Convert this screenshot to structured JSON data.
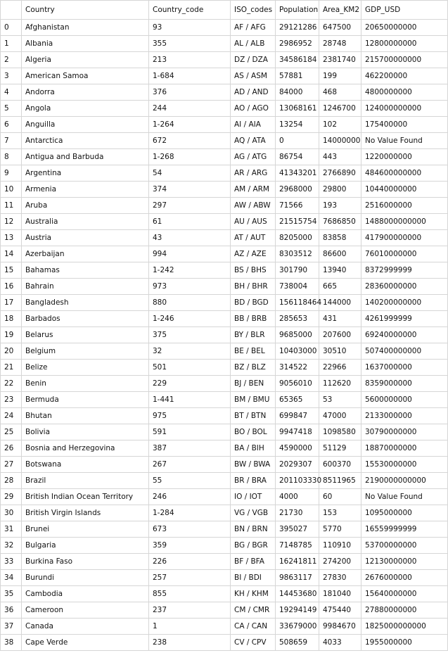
{
  "table": {
    "headers": [
      "",
      "Country",
      "Country_code",
      "ISO_codes",
      "Population",
      "Area_KM2",
      "GDP_USD"
    ],
    "rows": [
      [
        "0",
        "Afghanistan",
        "93",
        "AF / AFG",
        "29121286",
        "647500",
        "20650000000"
      ],
      [
        "1",
        "Albania",
        "355",
        "AL / ALB",
        "2986952",
        "28748",
        "12800000000"
      ],
      [
        "2",
        "Algeria",
        "213",
        "DZ / DZA",
        "34586184",
        "2381740",
        "215700000000"
      ],
      [
        "3",
        "American Samoa",
        "1-684",
        "AS / ASM",
        "57881",
        "199",
        "462200000"
      ],
      [
        "4",
        "Andorra",
        "376",
        "AD / AND",
        "84000",
        "468",
        "4800000000"
      ],
      [
        "5",
        "Angola",
        "244",
        "AO / AGO",
        "13068161",
        "1246700",
        "124000000000"
      ],
      [
        "6",
        "Anguilla",
        "1-264",
        "AI / AIA",
        "13254",
        "102",
        "175400000"
      ],
      [
        "7",
        "Antarctica",
        "672",
        "AQ / ATA",
        "0",
        "14000000",
        "No Value Found"
      ],
      [
        "8",
        "Antigua and Barbuda",
        "1-268",
        "AG / ATG",
        "86754",
        "443",
        "1220000000"
      ],
      [
        "9",
        "Argentina",
        "54",
        "AR / ARG",
        "41343201",
        "2766890",
        "484600000000"
      ],
      [
        "10",
        "Armenia",
        "374",
        "AM / ARM",
        "2968000",
        "29800",
        "10440000000"
      ],
      [
        "11",
        "Aruba",
        "297",
        "AW / ABW",
        "71566",
        "193",
        "2516000000"
      ],
      [
        "12",
        "Australia",
        "61",
        "AU / AUS",
        "21515754",
        "7686850",
        "1488000000000"
      ],
      [
        "13",
        "Austria",
        "43",
        "AT / AUT",
        "8205000",
        "83858",
        "417900000000"
      ],
      [
        "14",
        "Azerbaijan",
        "994",
        "AZ / AZE",
        "8303512",
        "86600",
        "76010000000"
      ],
      [
        "15",
        "Bahamas",
        "1-242",
        "BS / BHS",
        "301790",
        "13940",
        "8372999999"
      ],
      [
        "16",
        "Bahrain",
        "973",
        "BH / BHR",
        "738004",
        "665",
        "28360000000"
      ],
      [
        "17",
        "Bangladesh",
        "880",
        "BD / BGD",
        "156118464",
        "144000",
        "140200000000"
      ],
      [
        "18",
        "Barbados",
        "1-246",
        "BB / BRB",
        "285653",
        "431",
        "4261999999"
      ],
      [
        "19",
        "Belarus",
        "375",
        "BY / BLR",
        "9685000",
        "207600",
        "69240000000"
      ],
      [
        "20",
        "Belgium",
        "32",
        "BE / BEL",
        "10403000",
        "30510",
        "507400000000"
      ],
      [
        "21",
        "Belize",
        "501",
        "BZ / BLZ",
        "314522",
        "22966",
        "1637000000"
      ],
      [
        "22",
        "Benin",
        "229",
        "BJ / BEN",
        "9056010",
        "112620",
        "8359000000"
      ],
      [
        "23",
        "Bermuda",
        "1-441",
        "BM / BMU",
        "65365",
        "53",
        "5600000000"
      ],
      [
        "24",
        "Bhutan",
        "975",
        "BT / BTN",
        "699847",
        "47000",
        "2133000000"
      ],
      [
        "25",
        "Bolivia",
        "591",
        "BO / BOL",
        "9947418",
        "1098580",
        "30790000000"
      ],
      [
        "26",
        "Bosnia and Herzegovina",
        "387",
        "BA / BIH",
        "4590000",
        "51129",
        "18870000000"
      ],
      [
        "27",
        "Botswana",
        "267",
        "BW / BWA",
        "2029307",
        "600370",
        "15530000000"
      ],
      [
        "28",
        "Brazil",
        "55",
        "BR / BRA",
        "201103330",
        "8511965",
        "2190000000000"
      ],
      [
        "29",
        "British Indian Ocean Territory",
        "246",
        "IO / IOT",
        "4000",
        "60",
        "No Value Found"
      ],
      [
        "30",
        "British Virgin Islands",
        "1-284",
        "VG / VGB",
        "21730",
        "153",
        "1095000000"
      ],
      [
        "31",
        "Brunei",
        "673",
        "BN / BRN",
        "395027",
        "5770",
        "16559999999"
      ],
      [
        "32",
        "Bulgaria",
        "359",
        "BG / BGR",
        "7148785",
        "110910",
        "53700000000"
      ],
      [
        "33",
        "Burkina Faso",
        "226",
        "BF / BFA",
        "16241811",
        "274200",
        "12130000000"
      ],
      [
        "34",
        "Burundi",
        "257",
        "BI / BDI",
        "9863117",
        "27830",
        "2676000000"
      ],
      [
        "35",
        "Cambodia",
        "855",
        "KH / KHM",
        "14453680",
        "181040",
        "15640000000"
      ],
      [
        "36",
        "Cameroon",
        "237",
        "CM / CMR",
        "19294149",
        "475440",
        "27880000000"
      ],
      [
        "37",
        "Canada",
        "1",
        "CA / CAN",
        "33679000",
        "9984670",
        "1825000000000"
      ],
      [
        "38",
        "Cape Verde",
        "238",
        "CV / CPV",
        "508659",
        "4033",
        "1955000000"
      ]
    ]
  }
}
